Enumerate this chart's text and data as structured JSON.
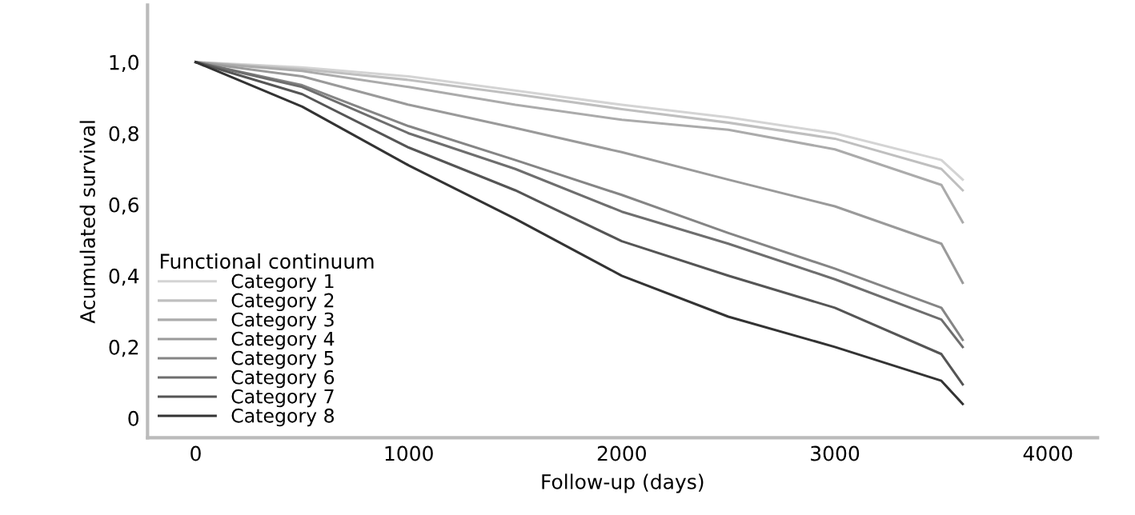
{
  "chart_data": {
    "type": "line",
    "xlabel": "Follow-up (days)",
    "ylabel": "Acumulated survival",
    "legend_title": "Functional continuum",
    "legend": "bottom left",
    "grid": false,
    "line_style": "solid",
    "marker": "none",
    "x": [
      0,
      500,
      1000,
      1500,
      2000,
      2500,
      3000,
      3500,
      3600
    ],
    "xlim": [
      -226,
      4233
    ],
    "ylim": [
      -0.055,
      1.16
    ],
    "xticks": [
      0,
      1000,
      2000,
      3000,
      4000
    ],
    "yticks": [
      {
        "value": 0,
        "label": "0"
      },
      {
        "value": 0.2,
        "label": "0,2"
      },
      {
        "value": 0.4,
        "label": "0,4"
      },
      {
        "value": 0.6,
        "label": "0,6"
      },
      {
        "value": 0.8,
        "label": "0,8"
      },
      {
        "value": 1.0,
        "label": "1,0"
      }
    ],
    "series": [
      {
        "name": "Category 1",
        "color": "#d4d4d4",
        "values": [
          1.0,
          0.985,
          0.96,
          0.92,
          0.88,
          0.845,
          0.8,
          0.725,
          0.67
        ]
      },
      {
        "name": "Category 2",
        "color": "#bfbfbf",
        "values": [
          1.0,
          0.98,
          0.95,
          0.91,
          0.868,
          0.83,
          0.785,
          0.7,
          0.64
        ]
      },
      {
        "name": "Category 3",
        "color": "#ababab",
        "values": [
          1.0,
          0.975,
          0.93,
          0.88,
          0.838,
          0.81,
          0.755,
          0.655,
          0.55
        ]
      },
      {
        "name": "Category 4",
        "color": "#9a9a9a",
        "values": [
          1.0,
          0.96,
          0.88,
          0.815,
          0.747,
          0.67,
          0.595,
          0.49,
          0.38
        ]
      },
      {
        "name": "Category 5",
        "color": "#858585",
        "values": [
          1.0,
          0.935,
          0.82,
          0.725,
          0.627,
          0.52,
          0.42,
          0.31,
          0.22
        ]
      },
      {
        "name": "Category 6",
        "color": "#6e6e6e",
        "values": [
          1.0,
          0.93,
          0.8,
          0.7,
          0.58,
          0.49,
          0.39,
          0.277,
          0.2
        ]
      },
      {
        "name": "Category 7",
        "color": "#555555",
        "values": [
          1.0,
          0.91,
          0.76,
          0.64,
          0.497,
          0.4,
          0.31,
          0.18,
          0.095
        ]
      },
      {
        "name": "Category 8",
        "color": "#333333",
        "values": [
          1.0,
          0.875,
          0.71,
          0.56,
          0.4,
          0.285,
          0.2,
          0.105,
          0.04
        ]
      }
    ]
  }
}
